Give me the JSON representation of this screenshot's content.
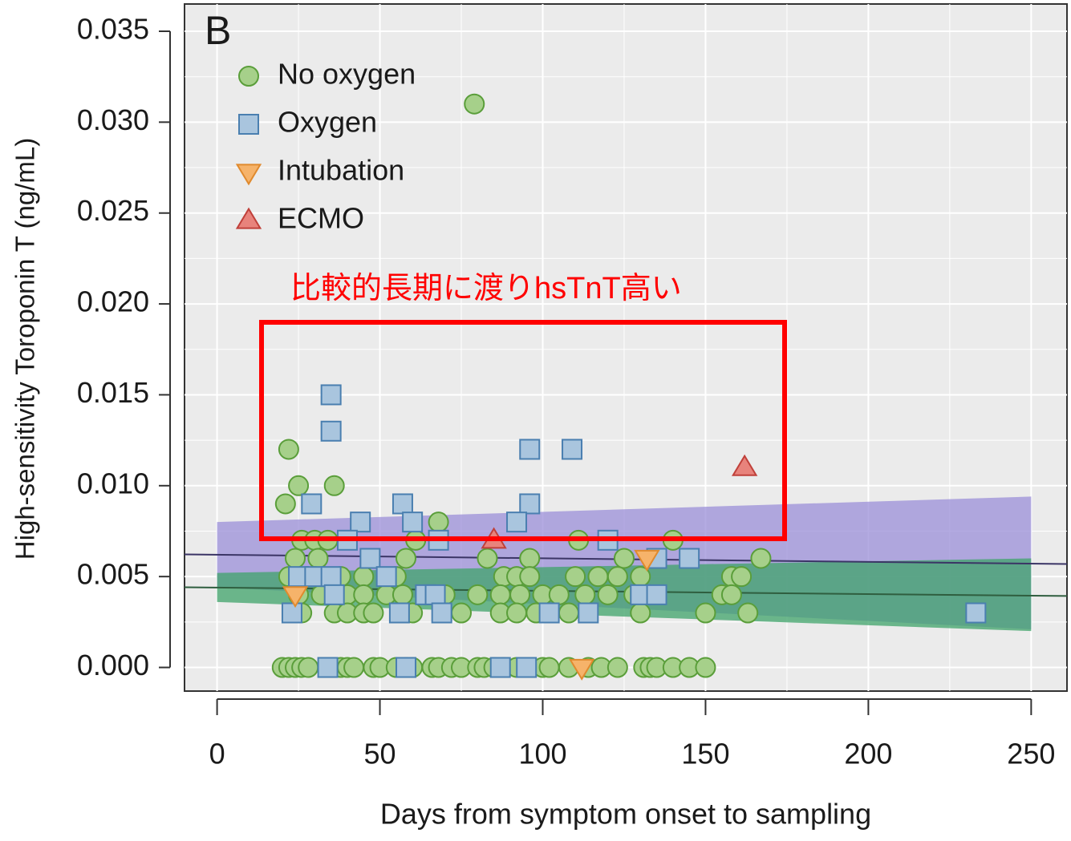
{
  "chart_data": {
    "type": "scatter",
    "panel_label": "B",
    "annotation": "比較的長期に渡りhsTnT高い",
    "x_label": "Days from symptom onset to sampling",
    "y_label": "High-sensitivity Toroponin T (ng/mL)",
    "xlim": [
      -10,
      261
    ],
    "ylim": [
      -0.0013,
      0.0365
    ],
    "xticks": [
      0,
      50,
      100,
      150,
      200,
      250
    ],
    "yticks": [
      {
        "value": 0,
        "label": "0.000"
      },
      {
        "value": 0.005,
        "label": "0.005"
      },
      {
        "value": 0.01,
        "label": "0.010"
      },
      {
        "value": 0.015,
        "label": "0.015"
      },
      {
        "value": 0.02,
        "label": "0.020"
      },
      {
        "value": 0.025,
        "label": "0.025"
      },
      {
        "value": 0.03,
        "label": "0.030"
      },
      {
        "value": 0.035,
        "label": "0.035"
      }
    ],
    "grid": true,
    "minor_grid": true,
    "legend": "top-left",
    "bands": [
      {
        "color": "#9b8fd8",
        "x": [
          0,
          250
        ],
        "lower": [
          0.0044,
          0.0021
        ],
        "upper": [
          0.008,
          0.0094
        ]
      },
      {
        "color": "#3fa36a",
        "x": [
          0,
          250
        ],
        "lower": [
          0.0036,
          0.002
        ],
        "upper": [
          0.0052,
          0.006
        ]
      }
    ],
    "fit_lines": [
      {
        "color": "#3b3566",
        "x": [
          -10,
          261
        ],
        "y": [
          0.00622,
          0.00569
        ]
      },
      {
        "color": "#2f5e3f",
        "x": [
          -10,
          261
        ],
        "y": [
          0.00441,
          0.00393
        ]
      }
    ],
    "series": [
      {
        "name": "No oxygen",
        "marker": "circle",
        "color": "#a6d08a",
        "edge": "#5a9e3a",
        "x": [
          79,
          22,
          25,
          36,
          21,
          68,
          26,
          30,
          34,
          61,
          111,
          140,
          24,
          31,
          58,
          83,
          96,
          125,
          167,
          22,
          30,
          38,
          45,
          55,
          88,
          92,
          96,
          110,
          117,
          123,
          130,
          158,
          161,
          25,
          32,
          40,
          45,
          52,
          57,
          70,
          80,
          87,
          93,
          100,
          105,
          113,
          120,
          128,
          155,
          158,
          26,
          36,
          40,
          45,
          48,
          60,
          75,
          87,
          92,
          98,
          108,
          130,
          150,
          163,
          20,
          22,
          24,
          26,
          28,
          38,
          40,
          42,
          48,
          50,
          55,
          58,
          60,
          66,
          68,
          72,
          75,
          80,
          82,
          85,
          88,
          92,
          100,
          102,
          108,
          114,
          118,
          123,
          131,
          133,
          135,
          140,
          145,
          150
        ],
        "y": [
          0.031,
          0.012,
          0.01,
          0.01,
          0.009,
          0.008,
          0.007,
          0.007,
          0.007,
          0.007,
          0.007,
          0.007,
          0.006,
          0.006,
          0.006,
          0.006,
          0.006,
          0.006,
          0.006,
          0.005,
          0.005,
          0.005,
          0.005,
          0.005,
          0.005,
          0.005,
          0.005,
          0.005,
          0.005,
          0.005,
          0.005,
          0.005,
          0.005,
          0.004,
          0.004,
          0.004,
          0.004,
          0.004,
          0.004,
          0.004,
          0.004,
          0.004,
          0.004,
          0.004,
          0.004,
          0.004,
          0.004,
          0.004,
          0.004,
          0.004,
          0.003,
          0.003,
          0.003,
          0.003,
          0.003,
          0.003,
          0.003,
          0.003,
          0.003,
          0.003,
          0.003,
          0.003,
          0.003,
          0.003,
          0,
          0,
          0,
          0,
          0,
          0,
          0,
          0,
          0,
          0,
          0,
          0,
          0,
          0,
          0,
          0,
          0,
          0,
          0,
          0,
          0,
          0,
          0,
          0,
          0,
          0,
          0,
          0,
          0,
          0,
          0,
          0,
          0,
          0
        ]
      },
      {
        "name": "Oxygen",
        "marker": "square",
        "color": "#a9c5de",
        "edge": "#4a7fb0",
        "x": [
          35,
          35,
          96,
          109,
          29,
          57,
          96,
          44,
          60,
          92,
          40,
          68,
          120,
          47,
          135,
          145,
          25,
          30,
          35,
          52,
          36,
          64,
          67,
          130,
          135,
          23,
          56,
          69,
          102,
          114,
          233,
          34,
          58,
          87,
          95
        ],
        "y": [
          0.015,
          0.013,
          0.012,
          0.012,
          0.009,
          0.009,
          0.009,
          0.008,
          0.008,
          0.008,
          0.007,
          0.007,
          0.007,
          0.006,
          0.006,
          0.006,
          0.005,
          0.005,
          0.005,
          0.005,
          0.004,
          0.004,
          0.004,
          0.004,
          0.004,
          0.003,
          0.003,
          0.003,
          0.003,
          0.003,
          0.003,
          0,
          0,
          0,
          0
        ]
      },
      {
        "name": "Intubation",
        "marker": "triangle-down",
        "color": "#f6b36a",
        "edge": "#e08a2e",
        "x": [
          24,
          132,
          112
        ],
        "y": [
          0.004,
          0.006,
          0
        ]
      },
      {
        "name": "ECMO",
        "marker": "triangle-up",
        "color": "#e8837c",
        "edge": "#c0403a",
        "x": [
          85,
          162
        ],
        "y": [
          0.007,
          0.011
        ]
      }
    ]
  }
}
